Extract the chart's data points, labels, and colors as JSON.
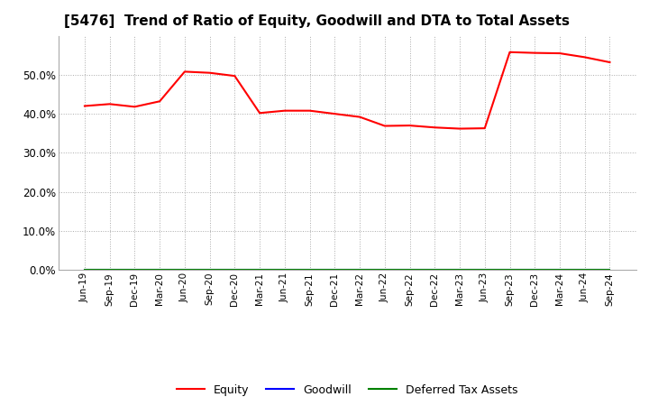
{
  "title": "[5476]  Trend of Ratio of Equity, Goodwill and DTA to Total Assets",
  "x_labels": [
    "Jun-19",
    "Sep-19",
    "Dec-19",
    "Mar-20",
    "Jun-20",
    "Sep-20",
    "Dec-20",
    "Mar-21",
    "Jun-21",
    "Sep-21",
    "Dec-21",
    "Mar-22",
    "Jun-22",
    "Sep-22",
    "Dec-22",
    "Mar-23",
    "Jun-23",
    "Sep-23",
    "Dec-23",
    "Mar-24",
    "Jun-24",
    "Sep-24"
  ],
  "equity": [
    0.42,
    0.425,
    0.418,
    0.432,
    0.508,
    0.505,
    0.497,
    0.402,
    0.408,
    0.408,
    0.4,
    0.392,
    0.369,
    0.37,
    0.365,
    0.362,
    0.363,
    0.558,
    0.556,
    0.555,
    0.545,
    0.532
  ],
  "goodwill": [
    0.0,
    0.0,
    0.0,
    0.0,
    0.0,
    0.0,
    0.0,
    0.0,
    0.0,
    0.0,
    0.0,
    0.0,
    0.0,
    0.0,
    0.0,
    0.0,
    0.0,
    0.0,
    0.0,
    0.0,
    0.0,
    0.0
  ],
  "dta": [
    0.0,
    0.0,
    0.0,
    0.0,
    0.0,
    0.0,
    0.0,
    0.0,
    0.0,
    0.0,
    0.0,
    0.0,
    0.0,
    0.0,
    0.0,
    0.0,
    0.0,
    0.0,
    0.0,
    0.0,
    0.0,
    0.0
  ],
  "equity_color": "#FF0000",
  "goodwill_color": "#0000FF",
  "dta_color": "#008000",
  "ylim": [
    0.0,
    0.6
  ],
  "yticks": [
    0.0,
    0.1,
    0.2,
    0.3,
    0.4,
    0.5
  ],
  "background_color": "#FFFFFF",
  "plot_bg_color": "#FFFFFF",
  "grid_color": "#AAAAAA",
  "title_fontsize": 11,
  "legend_labels": [
    "Equity",
    "Goodwill",
    "Deferred Tax Assets"
  ]
}
